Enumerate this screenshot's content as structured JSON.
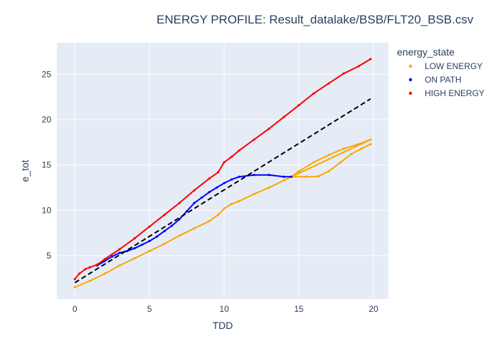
{
  "chart_data": {
    "type": "scatter",
    "title": "ENERGY PROFILE: Result_datalake/BSB/FLT20_BSB.csv",
    "xlabel": "TDD",
    "ylabel": "e_tot",
    "xlim": [
      -1.2,
      21
    ],
    "ylim": [
      0.2,
      28.5
    ],
    "xticks": [
      0,
      5,
      10,
      15,
      20
    ],
    "yticks": [
      5,
      10,
      15,
      20,
      25
    ],
    "grid": true,
    "legend": {
      "title": "energy_state",
      "placement": "top-right"
    },
    "series": [
      {
        "name": "LOW ENERGY",
        "color": "#FFA500",
        "mode": "markers",
        "points": [
          [
            0,
            1.5
          ],
          [
            1,
            2.2
          ],
          [
            2,
            3.0
          ],
          [
            3,
            3.9
          ],
          [
            4,
            4.7
          ],
          [
            5,
            5.5
          ],
          [
            6,
            6.3
          ],
          [
            7,
            7.2
          ],
          [
            8,
            8.0
          ],
          [
            9,
            8.8
          ],
          [
            9.6,
            9.5
          ],
          [
            10,
            10.2
          ],
          [
            10.5,
            10.7
          ],
          [
            11,
            11.0
          ],
          [
            12,
            11.8
          ],
          [
            13,
            12.5
          ],
          [
            14,
            13.3
          ],
          [
            14.5,
            13.7
          ],
          [
            15,
            14.3
          ],
          [
            16,
            15.3
          ],
          [
            17,
            16.1
          ],
          [
            18,
            16.8
          ],
          [
            19,
            17.3
          ],
          [
            19.8,
            17.8
          ],
          [
            14.5,
            13.7
          ],
          [
            15.5,
            13.7
          ],
          [
            16.3,
            13.75
          ],
          [
            17,
            14.3
          ],
          [
            17.8,
            15.3
          ],
          [
            18.5,
            16.2
          ],
          [
            19.2,
            16.8
          ],
          [
            19.8,
            17.3
          ]
        ]
      },
      {
        "name": "ON PATH",
        "color": "#0000FF",
        "mode": "markers",
        "points": [
          [
            1.5,
            3.9
          ],
          [
            2,
            4.4
          ],
          [
            2.5,
            4.9
          ],
          [
            3,
            5.3
          ],
          [
            3.5,
            5.5
          ],
          [
            4,
            5.8
          ],
          [
            4.5,
            6.2
          ],
          [
            5,
            6.6
          ],
          [
            5.5,
            7.1
          ],
          [
            6,
            7.7
          ],
          [
            6.5,
            8.3
          ],
          [
            7,
            9.0
          ],
          [
            7.5,
            9.9
          ],
          [
            8,
            10.8
          ],
          [
            8.5,
            11.4
          ],
          [
            9,
            12.0
          ],
          [
            9.5,
            12.5
          ],
          [
            10,
            13.0
          ],
          [
            10.5,
            13.4
          ],
          [
            11,
            13.7
          ],
          [
            12,
            13.9
          ],
          [
            13,
            13.9
          ],
          [
            14,
            13.7
          ],
          [
            14.5,
            13.7
          ]
        ]
      },
      {
        "name": "HIGH ENERGY",
        "color": "#FF0000",
        "mode": "markers",
        "points": [
          [
            0,
            2.4
          ],
          [
            0.3,
            3.0
          ],
          [
            0.7,
            3.5
          ],
          [
            1,
            3.7
          ],
          [
            1.5,
            4.0
          ],
          [
            2,
            4.6
          ],
          [
            3,
            5.7
          ],
          [
            4,
            6.9
          ],
          [
            5,
            8.2
          ],
          [
            6,
            9.5
          ],
          [
            7,
            10.8
          ],
          [
            8,
            12.2
          ],
          [
            9,
            13.5
          ],
          [
            9.6,
            14.2
          ],
          [
            10,
            15.3
          ],
          [
            10.5,
            15.9
          ],
          [
            11,
            16.6
          ],
          [
            12,
            17.8
          ],
          [
            13,
            19.0
          ],
          [
            14,
            20.3
          ],
          [
            15,
            21.6
          ],
          [
            16,
            22.9
          ],
          [
            17,
            24.0
          ],
          [
            18,
            25.1
          ],
          [
            19,
            25.9
          ],
          [
            19.8,
            26.7
          ]
        ]
      },
      {
        "name": "",
        "color": "#000000",
        "mode": "dashed-line",
        "points": [
          [
            0,
            2.0
          ],
          [
            19.8,
            22.3
          ]
        ]
      }
    ]
  }
}
